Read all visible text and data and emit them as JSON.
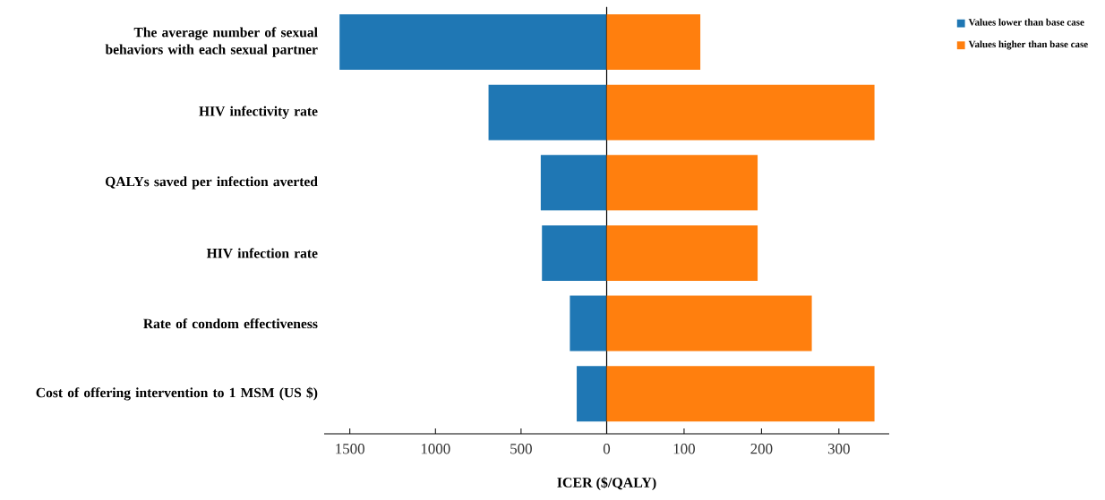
{
  "chart_data": [
    {
      "type": "bar",
      "orientation": "horizontal",
      "categories": [
        "The average number of sexual behaviors with each sexual partner",
        "HIV infectivity rate",
        "QALYs saved per infection averted",
        "HIV infection rate",
        "Rate of condom effectiveness",
        "Cost of offering intervention to 1 MSM (US $)"
      ],
      "series": [
        {
          "name": "Values lower than base case",
          "color": "#1f77b4",
          "values": [
            1560,
            690,
            385,
            378,
            215,
            175
          ]
        }
      ],
      "xlim": [
        1650,
        0
      ],
      "xticks": [
        1500,
        1000,
        500,
        0
      ]
    },
    {
      "type": "bar",
      "orientation": "horizontal",
      "categories": [
        null,
        null,
        null,
        null,
        null,
        null
      ],
      "series": [
        {
          "name": "Values higher than base case",
          "color": "#ff7f0e",
          "values": [
            121,
            346,
            195,
            195,
            265,
            346
          ]
        }
      ],
      "xlim": [
        0,
        365
      ],
      "xticks": [
        {
          "value": 0,
          "label": null
        },
        100,
        200,
        300
      ],
      "legend": "top right",
      "xlabel": "ICER ($/QALY)"
    }
  ]
}
